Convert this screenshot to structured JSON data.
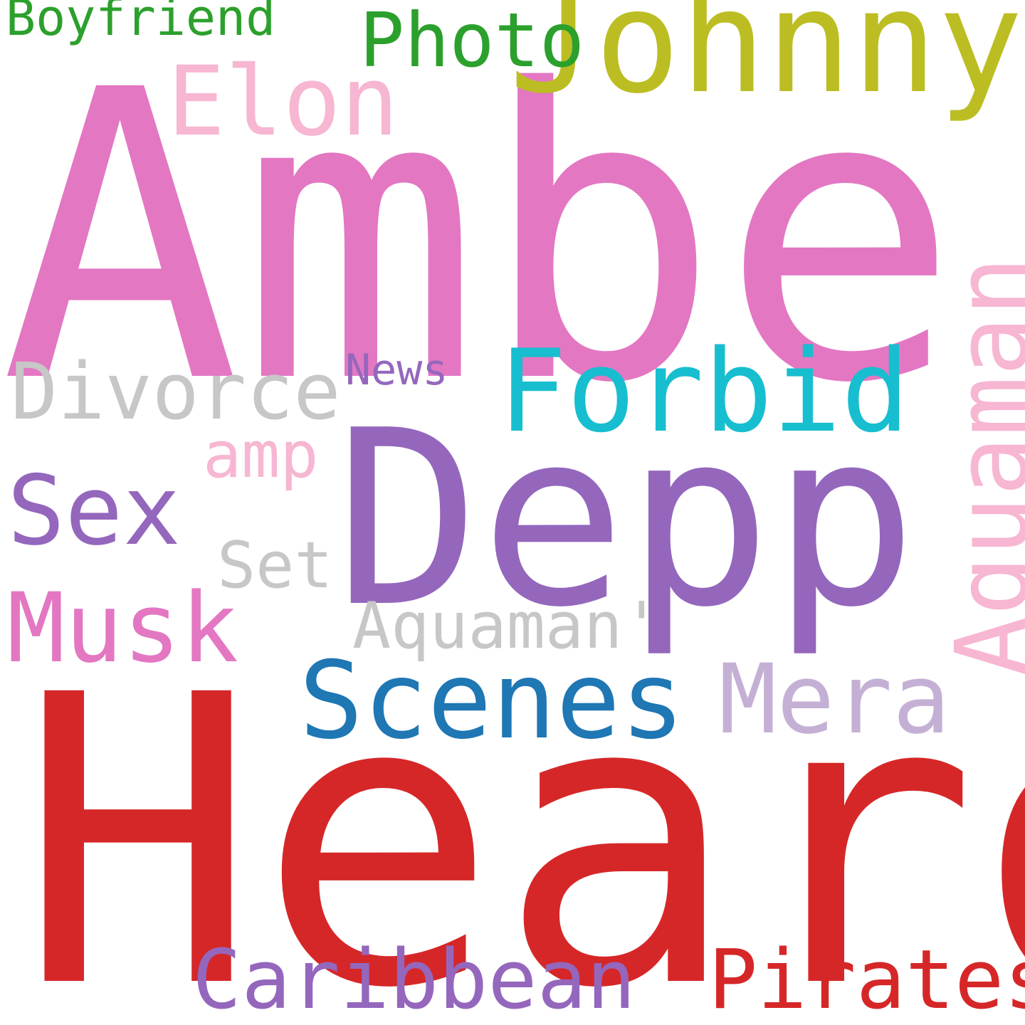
{
  "word_cloud": {
    "background": "#ffffff",
    "words": [
      {
        "key": "amber",
        "text": "Amber",
        "color": "#e377c2"
      },
      {
        "key": "heard",
        "text": "Heard",
        "color": "#d62728"
      },
      {
        "key": "depp",
        "text": "Depp",
        "color": "#9467bd"
      },
      {
        "key": "johnny",
        "text": "Johnny",
        "color": "#bcbd22"
      },
      {
        "key": "forbid",
        "text": "Forbid",
        "color": "#17becf"
      },
      {
        "key": "scenes",
        "text": "Scenes",
        "color": "#1f77b4"
      },
      {
        "key": "aquaman_vertical",
        "text": "Aquaman",
        "color": "#f7b6d2",
        "orientation": "vertical"
      },
      {
        "key": "elon",
        "text": "Elon",
        "color": "#f7b6d2"
      },
      {
        "key": "sex",
        "text": "Sex",
        "color": "#9467bd"
      },
      {
        "key": "musk",
        "text": "Musk",
        "color": "#e377c2"
      },
      {
        "key": "mera",
        "text": "Mera",
        "color": "#c5b0d5"
      },
      {
        "key": "divorce",
        "text": "Divorce",
        "color": "#c7c7c7"
      },
      {
        "key": "caribbean",
        "text": "Caribbean",
        "color": "#9467bd"
      },
      {
        "key": "pirates",
        "text": "Pirates",
        "color": "#d62728"
      },
      {
        "key": "photo",
        "text": "Photo",
        "color": "#2ca02c"
      },
      {
        "key": "set",
        "text": "Set",
        "color": "#c7c7c7"
      },
      {
        "key": "aquaman_possessive",
        "text": "Aquaman'",
        "color": "#c7c7c7"
      },
      {
        "key": "amp",
        "text": "amp",
        "color": "#f7b6d2"
      },
      {
        "key": "boyfriend",
        "text": "Boyfriend",
        "color": "#2ca02c"
      },
      {
        "key": "news",
        "text": "News",
        "color": "#9467bd"
      }
    ]
  }
}
